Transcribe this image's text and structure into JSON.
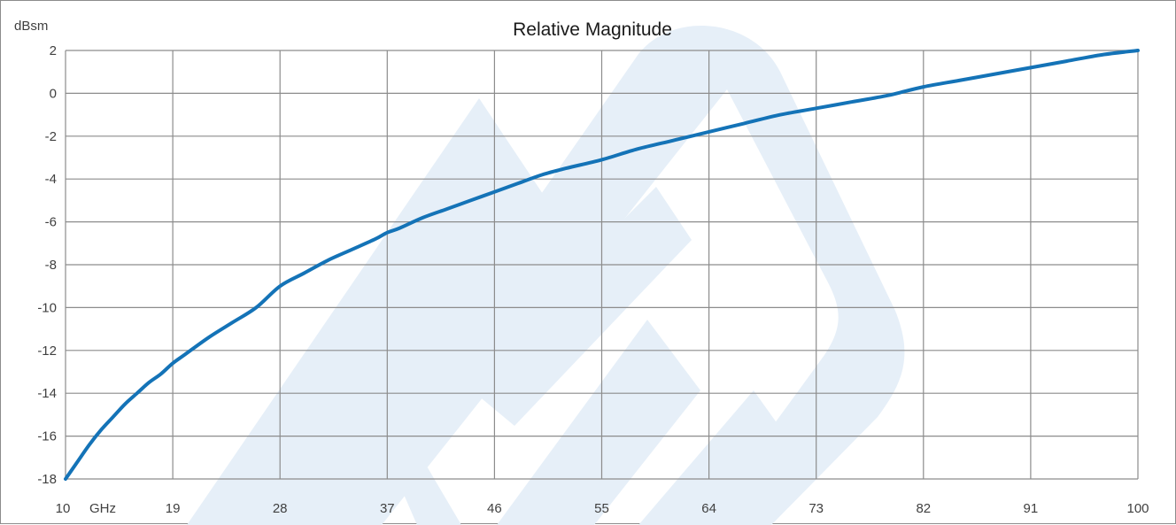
{
  "colors": {
    "line": "#1473b7",
    "grid": "#8c8c8c",
    "watermark": "#e6eff8",
    "text": "#404040",
    "background": "#ffffff"
  },
  "chart_data": {
    "type": "line",
    "title": "Relative Magnitude",
    "ylabel": "dBsm",
    "xunit": "GHz",
    "xlim": [
      10,
      100
    ],
    "ylim": [
      -18,
      2
    ],
    "x_ticks": [
      "10",
      "19",
      "28",
      "37",
      "46",
      "55",
      "64",
      "73",
      "82",
      "91",
      "100"
    ],
    "y_ticks": [
      "2",
      "0",
      "-2",
      "-4",
      "-6",
      "-8",
      "-10",
      "-12",
      "-14",
      "-16",
      "-18"
    ],
    "grid": true,
    "legend": "none",
    "watermark": "logo",
    "series": [
      {
        "x": [
          10,
          11,
          12,
          13,
          14,
          15,
          16,
          17,
          18,
          19,
          20,
          22,
          24,
          26,
          28,
          30,
          32,
          34,
          36,
          37,
          38,
          40,
          42,
          44,
          46,
          48,
          50,
          52,
          55,
          58,
          61,
          64,
          67,
          70,
          73,
          76,
          79,
          82,
          85,
          88,
          91,
          94,
          97,
          100
        ],
        "values": [
          -18,
          -17.2,
          -16.4,
          -15.7,
          -15.1,
          -14.5,
          -14.0,
          -13.5,
          -13.1,
          -12.6,
          -12.2,
          -11.4,
          -10.7,
          -10.0,
          -9.0,
          -8.4,
          -7.8,
          -7.3,
          -6.8,
          -6.5,
          -6.3,
          -5.8,
          -5.4,
          -5.0,
          -4.6,
          -4.2,
          -3.8,
          -3.5,
          -3.1,
          -2.6,
          -2.2,
          -1.8,
          -1.4,
          -1.0,
          -0.7,
          -0.4,
          -0.1,
          0.3,
          0.6,
          0.9,
          1.2,
          1.5,
          1.8,
          2.0
        ]
      }
    ]
  }
}
